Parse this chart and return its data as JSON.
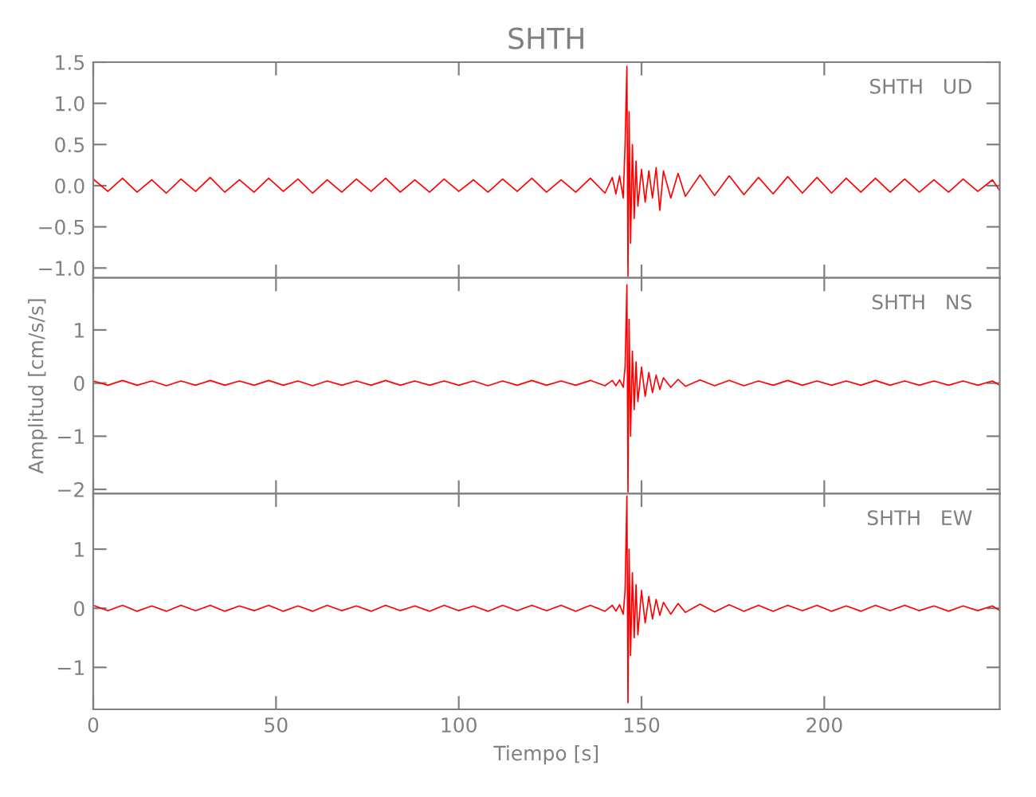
{
  "chart_data": [
    {
      "type": "line",
      "title": "SHTH",
      "annotations": [
        "SHTH   UD"
      ],
      "xlim": [
        0,
        248
      ],
      "xticks": [
        0,
        50,
        100,
        150,
        200
      ],
      "ylim": [
        -1.12,
        1.5
      ],
      "yticks": [
        {
          "value": -1.0,
          "label": "−1.0"
        },
        {
          "value": -0.5,
          "label": "−0.5"
        },
        {
          "value": 0.0,
          "label": "0.0"
        },
        {
          "value": 0.5,
          "label": "0.5"
        },
        {
          "value": 1.0,
          "label": "1.0"
        },
        {
          "value": 1.5,
          "label": "1.5"
        }
      ],
      "tick_labels": "y",
      "grid": false,
      "legend": false,
      "x": [
        0,
        4,
        8,
        12,
        16,
        20,
        24,
        28,
        32,
        36,
        40,
        44,
        48,
        52,
        56,
        60,
        64,
        68,
        72,
        76,
        80,
        84,
        88,
        92,
        96,
        100,
        104,
        108,
        112,
        116,
        120,
        124,
        128,
        132,
        136,
        140,
        142,
        143,
        144,
        145,
        145.5,
        146,
        146.3,
        146.6,
        147,
        147.5,
        148,
        148.5,
        149,
        150,
        151,
        152,
        153,
        154,
        155,
        156,
        158,
        160,
        162,
        166,
        170,
        174,
        178,
        182,
        186,
        190,
        194,
        198,
        202,
        206,
        210,
        214,
        218,
        222,
        226,
        230,
        234,
        238,
        242,
        246,
        248
      ],
      "series": [
        {
          "color": "#ff0000",
          "values": [
            0.08,
            -0.07,
            0.09,
            -0.08,
            0.07,
            -0.09,
            0.08,
            -0.07,
            0.1,
            -0.08,
            0.07,
            -0.08,
            0.09,
            -0.07,
            0.08,
            -0.09,
            0.07,
            -0.08,
            0.08,
            -0.07,
            0.09,
            -0.08,
            0.07,
            -0.08,
            0.08,
            -0.07,
            0.07,
            -0.08,
            0.08,
            -0.07,
            0.09,
            -0.08,
            0.07,
            -0.08,
            0.09,
            -0.09,
            0.1,
            -0.1,
            0.12,
            -0.15,
            0.5,
            1.45,
            -1.1,
            0.9,
            -0.7,
            0.5,
            -0.4,
            0.3,
            -0.25,
            0.2,
            -0.2,
            0.18,
            -0.15,
            0.22,
            -0.3,
            0.18,
            -0.15,
            0.15,
            -0.13,
            0.13,
            -0.12,
            0.12,
            -0.11,
            0.1,
            -0.1,
            0.11,
            -0.09,
            0.1,
            -0.09,
            0.09,
            -0.08,
            0.09,
            -0.08,
            0.08,
            -0.08,
            0.07,
            -0.08,
            0.08,
            -0.07,
            0.07,
            -0.06
          ]
        }
      ]
    },
    {
      "type": "line",
      "ylabel": "Amplitud [cm/s/s]",
      "annotations": [
        "SHTH   NS"
      ],
      "xlim": [
        0,
        248
      ],
      "xticks": [
        0,
        50,
        100,
        150,
        200
      ],
      "ylim": [
        -2.08,
        1.98
      ],
      "yticks": [
        {
          "value": -2,
          "label": "−2"
        },
        {
          "value": -1,
          "label": "−1"
        },
        0,
        1
      ],
      "tick_labels": "y",
      "grid": false,
      "legend": false,
      "x": [
        0,
        4,
        8,
        12,
        16,
        20,
        24,
        28,
        32,
        36,
        40,
        44,
        48,
        52,
        56,
        60,
        64,
        68,
        72,
        76,
        80,
        84,
        88,
        92,
        96,
        100,
        104,
        108,
        112,
        116,
        120,
        124,
        128,
        132,
        136,
        140,
        142,
        143,
        144,
        145,
        145.5,
        146,
        146.3,
        146.6,
        147,
        147.5,
        148,
        148.5,
        149,
        150,
        151,
        152,
        153,
        154,
        155,
        156,
        158,
        160,
        162,
        166,
        170,
        174,
        178,
        182,
        186,
        190,
        194,
        198,
        202,
        206,
        210,
        214,
        218,
        222,
        226,
        230,
        234,
        238,
        242,
        246,
        248
      ],
      "series": [
        {
          "color": "#ff0000",
          "values": [
            0.04,
            -0.04,
            0.05,
            -0.04,
            0.04,
            -0.05,
            0.04,
            -0.04,
            0.05,
            -0.04,
            0.04,
            -0.04,
            0.05,
            -0.04,
            0.04,
            -0.05,
            0.04,
            -0.04,
            0.04,
            -0.04,
            0.05,
            -0.04,
            0.04,
            -0.04,
            0.04,
            -0.04,
            0.04,
            -0.05,
            0.04,
            -0.04,
            0.05,
            -0.04,
            0.04,
            -0.04,
            0.05,
            -0.05,
            0.05,
            -0.05,
            0.06,
            -0.08,
            0.3,
            1.85,
            -2.05,
            1.2,
            -1.0,
            0.6,
            -0.5,
            0.4,
            -0.35,
            0.3,
            -0.25,
            0.2,
            -0.18,
            0.15,
            -0.12,
            0.1,
            -0.08,
            0.07,
            -0.06,
            0.06,
            -0.05,
            0.05,
            -0.05,
            0.04,
            -0.04,
            0.05,
            -0.04,
            0.04,
            -0.04,
            0.04,
            -0.04,
            0.05,
            -0.04,
            0.04,
            -0.04,
            0.04,
            -0.04,
            0.04,
            -0.04,
            0.04,
            -0.04
          ]
        }
      ]
    },
    {
      "type": "line",
      "xlabel": "Tiempo [s]",
      "annotations": [
        "SHTH   EW"
      ],
      "xlim": [
        0,
        248
      ],
      "xticks": [
        0,
        50,
        100,
        150,
        200
      ],
      "ylim": [
        -1.71,
        1.94
      ],
      "yticks": [
        {
          "value": -1,
          "label": "−1"
        },
        0,
        1
      ],
      "grid": false,
      "legend": false,
      "x": [
        0,
        4,
        8,
        12,
        16,
        20,
        24,
        28,
        32,
        36,
        40,
        44,
        48,
        52,
        56,
        60,
        64,
        68,
        72,
        76,
        80,
        84,
        88,
        92,
        96,
        100,
        104,
        108,
        112,
        116,
        120,
        124,
        128,
        132,
        136,
        140,
        142,
        143,
        144,
        145,
        145.5,
        146,
        146.3,
        146.6,
        147,
        147.5,
        148,
        148.5,
        149,
        150,
        151,
        152,
        153,
        154,
        155,
        156,
        158,
        160,
        162,
        166,
        170,
        174,
        178,
        182,
        186,
        190,
        194,
        198,
        202,
        206,
        210,
        214,
        218,
        222,
        226,
        230,
        234,
        238,
        242,
        246,
        248
      ],
      "series": [
        {
          "color": "#ff0000",
          "values": [
            0.05,
            -0.04,
            0.05,
            -0.05,
            0.04,
            -0.05,
            0.05,
            -0.04,
            0.05,
            -0.05,
            0.04,
            -0.04,
            0.05,
            -0.05,
            0.04,
            -0.05,
            0.05,
            -0.04,
            0.04,
            -0.05,
            0.05,
            -0.04,
            0.04,
            -0.05,
            0.05,
            -0.04,
            0.04,
            -0.05,
            0.05,
            -0.04,
            0.05,
            -0.04,
            0.05,
            -0.05,
            0.05,
            -0.05,
            0.05,
            -0.05,
            0.06,
            -0.1,
            0.3,
            1.9,
            -1.6,
            1.0,
            -0.8,
            0.6,
            -0.5,
            0.4,
            -0.45,
            0.3,
            -0.25,
            0.2,
            -0.18,
            0.15,
            -0.12,
            0.1,
            -0.1,
            0.08,
            -0.07,
            0.07,
            -0.06,
            0.06,
            -0.05,
            0.05,
            -0.05,
            0.05,
            -0.04,
            0.05,
            -0.05,
            0.04,
            -0.05,
            0.05,
            -0.04,
            0.05,
            -0.04,
            0.04,
            -0.05,
            0.04,
            -0.04,
            0.04,
            -0.04
          ]
        }
      ]
    }
  ]
}
